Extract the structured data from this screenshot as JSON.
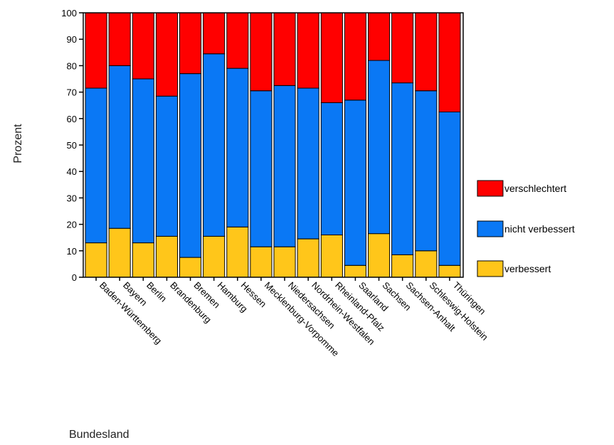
{
  "chart_data": {
    "type": "bar",
    "stacked": true,
    "percent": true,
    "xlabel": "Bundesland",
    "ylabel": "Prozent",
    "ylim": [
      0,
      100
    ],
    "yticks": [
      0,
      10,
      20,
      30,
      40,
      50,
      60,
      70,
      80,
      90,
      100
    ],
    "grid": false,
    "legend": "right",
    "categories": [
      "Baden-Württemberg",
      "Bayern",
      "Berlin",
      "Brandenburg",
      "Bremen",
      "Hamburg",
      "Hessen",
      "Mecklenburg-Vorpomme",
      "Niedersachsen",
      "Nordrhein-Westfalen",
      "Rheinland-Pfalz",
      "Saarland",
      "Sachsen",
      "Sachsen-Anhalt",
      "Schleswig-Holstein",
      "Thüringen"
    ],
    "series": [
      {
        "name": "verbessert",
        "color": "#FFC61A",
        "values": [
          13,
          18.5,
          13,
          15.5,
          7.5,
          15.5,
          19,
          11.5,
          11.5,
          14.5,
          16,
          4.5,
          16.5,
          8.5,
          10,
          4.5
        ]
      },
      {
        "name": "nicht verbessert",
        "color": "#0A78F5",
        "values": [
          58.5,
          61.5,
          62,
          53,
          69.5,
          69,
          60,
          59,
          61,
          57,
          50,
          62.5,
          65.5,
          65,
          60.5,
          58
        ]
      },
      {
        "name": "verschlechtert",
        "color": "#FF0000",
        "values": [
          28.5,
          20,
          25,
          31.5,
          23,
          15.5,
          21,
          29.5,
          27.5,
          28.5,
          34,
          33,
          18,
          26.5,
          29.5,
          37.5
        ]
      }
    ],
    "legend_order": [
      "verschlechtert",
      "nicht verbessert",
      "verbessert"
    ]
  }
}
